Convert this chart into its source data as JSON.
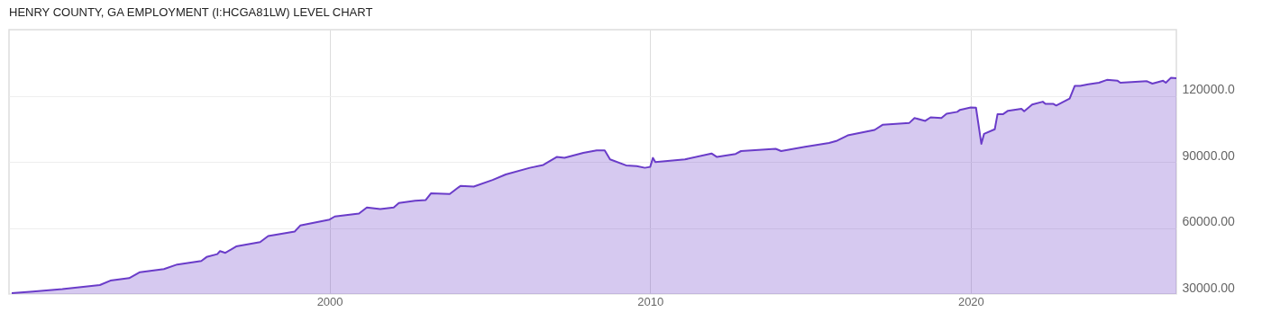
{
  "chart_data": {
    "type": "area",
    "title": "HENRY COUNTY, GA EMPLOYMENT (I:HCGA81LW) LEVEL CHART",
    "x": [
      "1990-02",
      "1990-10",
      "1991-09",
      "1992-11",
      "1993-03",
      "1993-10",
      "1994-02",
      "1994-11",
      "1995-04",
      "1996-01",
      "1996-03",
      "1996-07",
      "1996-08",
      "1996-10",
      "1997-02",
      "1997-11",
      "1998-02",
      "1998-12",
      "1999-02",
      "2000-01",
      "2000-03",
      "2000-12",
      "2001-03",
      "2001-08",
      "2002-01",
      "2002-03",
      "2002-09",
      "2003-01",
      "2003-03",
      "2003-10",
      "2004-02",
      "2004-07",
      "2005-02",
      "2005-07",
      "2006-04",
      "2006-09",
      "2007-02",
      "2007-05",
      "2007-12",
      "2008-05",
      "2008-08",
      "2008-10",
      "2009-04",
      "2009-08",
      "2009-11",
      "2010-01",
      "2010-02",
      "2010-03",
      "2011-02",
      "2011-12",
      "2012-02",
      "2012-09",
      "2012-11",
      "2013-12",
      "2014-02",
      "2014-11",
      "2015-08",
      "2015-11",
      "2016-03",
      "2017-01",
      "2017-04",
      "2018-02",
      "2018-04",
      "2018-08",
      "2018-10",
      "2019-02",
      "2019-04",
      "2019-08",
      "2019-09",
      "2020-01",
      "2020-03",
      "2020-05",
      "2020-06",
      "2020-10",
      "2020-11",
      "2021-01",
      "2021-03",
      "2021-08",
      "2021-09",
      "2021-12",
      "2022-04",
      "2022-05",
      "2022-08",
      "2022-09",
      "2023-02",
      "2023-04",
      "2023-06",
      "2023-09",
      "2024-01",
      "2024-04",
      "2024-08",
      "2024-09",
      "2025-07",
      "2025-09",
      "2026-01",
      "2026-02",
      "2026-04",
      "2026-06"
    ],
    "series": [
      {
        "color": "#6a3cc9",
        "values": [
          30400,
          31100,
          32200,
          34100,
          36100,
          37200,
          39900,
          41300,
          43400,
          45000,
          46800,
          48100,
          49500,
          48700,
          51600,
          53600,
          56300,
          58400,
          61100,
          63800,
          65200,
          66500,
          69300,
          68600,
          69300,
          71300,
          72300,
          72700,
          75700,
          75400,
          79100,
          78800,
          81800,
          84300,
          87300,
          88600,
          92200,
          91800,
          94100,
          95200,
          95200,
          91100,
          88400,
          88100,
          87300,
          87700,
          91800,
          89900,
          91100,
          93800,
          92200,
          93600,
          94900,
          95900,
          94900,
          96800,
          98600,
          99600,
          102000,
          104500,
          106800,
          107700,
          109900,
          108600,
          110200,
          109900,
          111800,
          112700,
          113600,
          114700,
          114600,
          98200,
          102700,
          104800,
          111600,
          111600,
          113200,
          114100,
          113000,
          116000,
          117300,
          116300,
          116300,
          115600,
          118700,
          124500,
          124500,
          125200,
          125900,
          127200,
          126800,
          125900,
          126600,
          125500,
          126800,
          125900,
          128200,
          128000
        ]
      }
    ],
    "xlim": [
      "1990-01",
      "2026-06"
    ],
    "ylim": [
      30000,
      150000
    ],
    "xticks": [
      "2000",
      "2010",
      "2020"
    ],
    "yticks": [
      {
        "value": 30000,
        "label": "30000.00"
      },
      {
        "value": 60000,
        "label": "60000.00"
      },
      {
        "value": 90000,
        "label": "90000.00"
      },
      {
        "value": 120000,
        "label": "120000.0"
      }
    ],
    "grid": true
  }
}
